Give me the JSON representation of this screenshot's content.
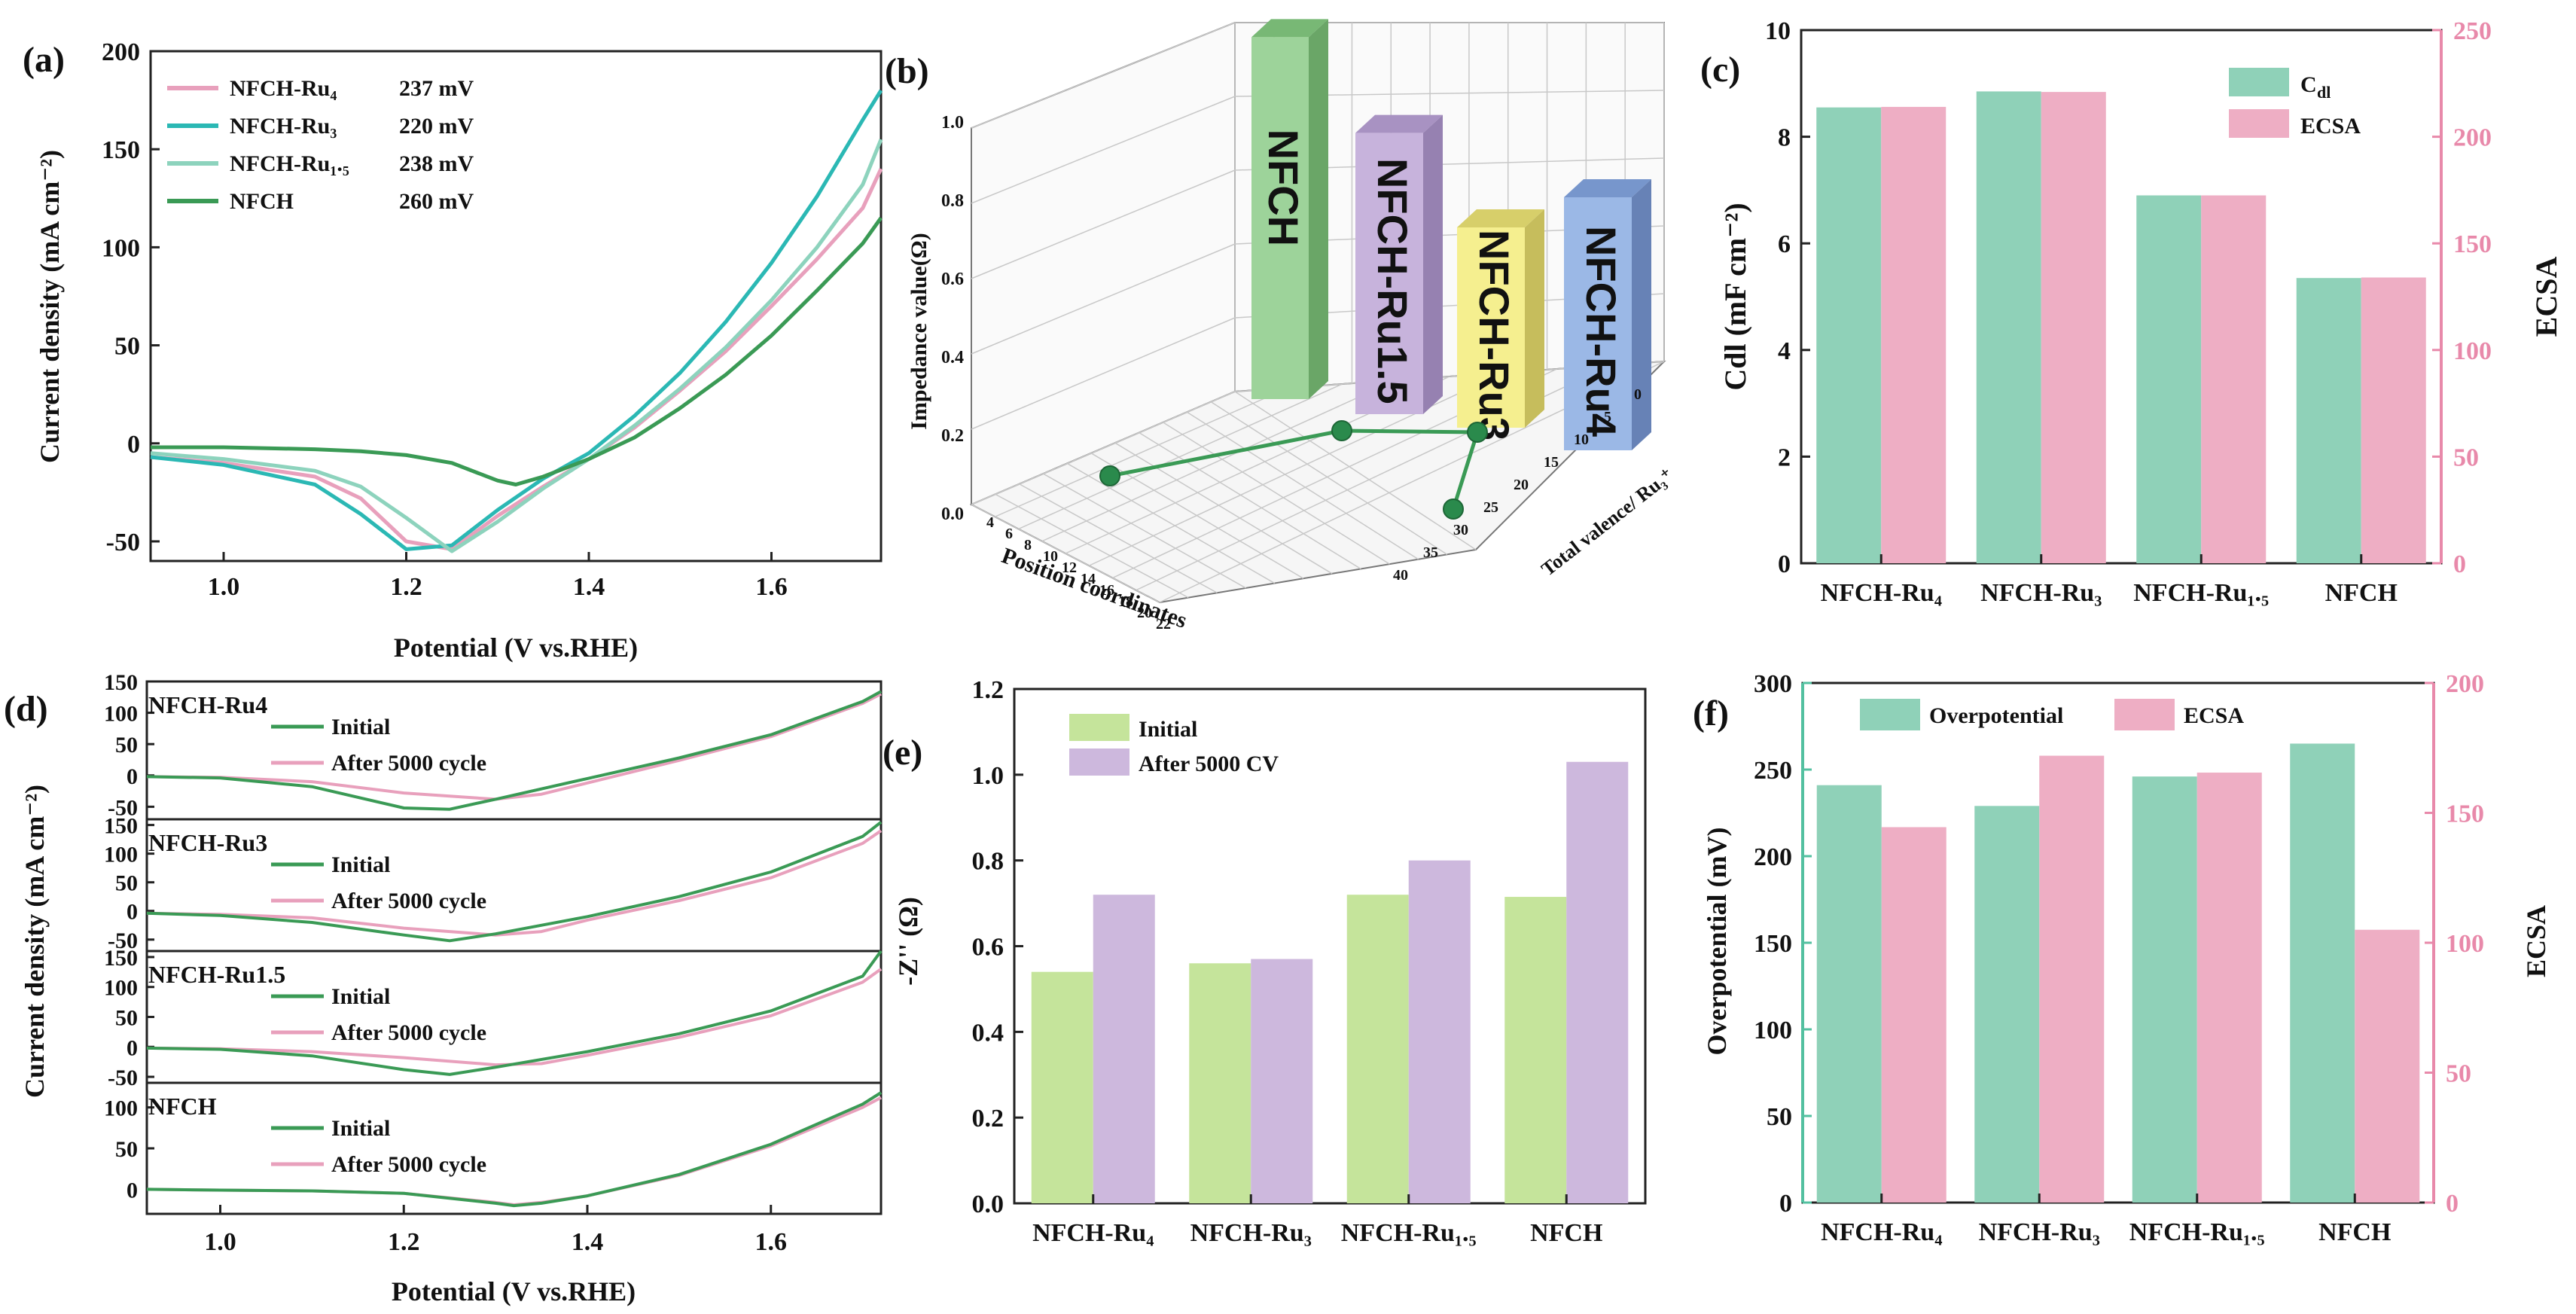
{
  "panels": {
    "a": "(a)",
    "b": "(b)",
    "c": "(c)",
    "d": "(d)",
    "e": "(e)",
    "f": "(f)"
  },
  "colors": {
    "ru4": "#e8a0bc",
    "ru3": "#2bb8b4",
    "ru15": "#8dd3bd",
    "nfch": "#3a9a55",
    "cdl": "#8fd1b8",
    "ecsa": "#eeaec4",
    "initial": "#c5e49b",
    "after": "#cdb8dd",
    "right_axis": "#e889aa",
    "left_axis_f": "#53c0a0"
  },
  "chart_data": [
    {
      "id": "a",
      "type": "line",
      "title": "",
      "xlabel": "Potential (V vs.RHE)",
      "ylabel": "Current density (mA cm⁻²)",
      "xlim": [
        0.92,
        1.72
      ],
      "ylim": [
        -60,
        200
      ],
      "xticks": [
        1.0,
        1.2,
        1.4,
        1.6
      ],
      "yticks": [
        -50,
        0,
        50,
        100,
        150,
        200
      ],
      "series": [
        {
          "key": "ru4",
          "name": "NFCH-Ru₄",
          "overpotential": "237 mV",
          "x": [
            0.92,
            1.0,
            1.1,
            1.15,
            1.2,
            1.25,
            1.3,
            1.35,
            1.4,
            1.45,
            1.5,
            1.55,
            1.6,
            1.65,
            1.7,
            1.72
          ],
          "y": [
            -7,
            -10,
            -17,
            -28,
            -50,
            -54,
            -37,
            -22,
            -8,
            8,
            27,
            47,
            70,
            94,
            120,
            140
          ]
        },
        {
          "key": "ru3",
          "name": "NFCH-Ru₃",
          "overpotential": "220 mV",
          "x": [
            0.92,
            1.0,
            1.1,
            1.15,
            1.2,
            1.25,
            1.3,
            1.35,
            1.4,
            1.45,
            1.5,
            1.55,
            1.6,
            1.65,
            1.7,
            1.72
          ],
          "y": [
            -7,
            -11,
            -21,
            -36,
            -54,
            -52,
            -34,
            -18,
            -5,
            14,
            36,
            62,
            92,
            126,
            165,
            180
          ]
        },
        {
          "key": "ru15",
          "name": "NFCH-Ru₁.₅",
          "overpotential": "238 mV",
          "x": [
            0.92,
            1.0,
            1.1,
            1.15,
            1.2,
            1.25,
            1.3,
            1.35,
            1.4,
            1.45,
            1.5,
            1.55,
            1.6,
            1.65,
            1.7,
            1.72
          ],
          "y": [
            -5,
            -8,
            -14,
            -22,
            -38,
            -55,
            -40,
            -23,
            -8,
            9,
            28,
            49,
            73,
            100,
            132,
            155
          ]
        },
        {
          "key": "nfch",
          "name": "NFCH",
          "overpotential": "260 mV",
          "x": [
            0.92,
            1.0,
            1.1,
            1.15,
            1.2,
            1.25,
            1.3,
            1.32,
            1.35,
            1.4,
            1.45,
            1.5,
            1.55,
            1.6,
            1.65,
            1.7,
            1.72
          ],
          "y": [
            -2,
            -2,
            -3,
            -4,
            -6,
            -10,
            -19,
            -21,
            -17,
            -8,
            3,
            18,
            35,
            55,
            78,
            102,
            115
          ]
        }
      ]
    },
    {
      "id": "b",
      "type": "bar",
      "title": "",
      "zlabel": "Impedance value(Ω)",
      "xlabel": "Position coordinates",
      "ylabel": "Total valence/ Ru₃⁺",
      "zticks": [
        "0.0",
        "0.2",
        "0.4",
        "0.6",
        "0.8",
        "1.0"
      ],
      "xticks": [
        "4",
        "6",
        "8",
        "10",
        "12",
        "14",
        "16",
        "18",
        "20",
        "22"
      ],
      "yticks": [
        "40",
        "35",
        "30",
        "25",
        "20",
        "15",
        "10",
        "5",
        "0"
      ],
      "bars": [
        {
          "label": "NFCH",
          "value": 1.03
        },
        {
          "label": "NFCH-Ru1.5",
          "value": 0.8
        },
        {
          "label": "NFCH-Ru3",
          "value": 0.57
        },
        {
          "label": "NFCH-Ru4",
          "value": 0.72
        }
      ]
    },
    {
      "id": "c",
      "type": "bar",
      "title": "",
      "ylabel": "Cdl (mF cm⁻²)",
      "ylabel_right": "ECSA",
      "ylim": [
        0,
        10
      ],
      "ylim_right": [
        0,
        250
      ],
      "yticks": [
        0,
        2,
        4,
        6,
        8,
        10
      ],
      "yticks_right": [
        0,
        50,
        100,
        150,
        200,
        250
      ],
      "categories": [
        "NFCH-Ru₄",
        "NFCH-Ru₃",
        "NFCH-Ru₁.₅",
        "NFCH"
      ],
      "series": [
        {
          "name": "Cdl",
          "values": [
            8.55,
            8.85,
            6.9,
            5.35
          ]
        },
        {
          "name": "ECSA",
          "values": [
            214,
            221,
            172.5,
            134
          ]
        }
      ]
    },
    {
      "id": "d",
      "type": "line",
      "title": "",
      "xlabel": "Potential (V vs.RHE)",
      "ylabel": "Current density (mA cm⁻²)",
      "xlim": [
        0.92,
        1.72
      ],
      "xticks": [
        1.0,
        1.2,
        1.4,
        1.6
      ],
      "legend": [
        "Initial",
        "After 5000 cycle"
      ],
      "subplots": [
        {
          "label": "NFCH-Ru4",
          "ylim": [
            -70,
            150
          ],
          "yticks": [
            -50,
            0,
            50,
            100,
            150
          ],
          "initial": {
            "x": [
              0.92,
              1.0,
              1.1,
              1.2,
              1.25,
              1.3,
              1.4,
              1.5,
              1.6,
              1.7,
              1.72
            ],
            "y": [
              -2,
              -4,
              -18,
              -52,
              -54,
              -38,
              -5,
              28,
              65,
              118,
              134
            ]
          },
          "after": {
            "x": [
              0.92,
              1.0,
              1.1,
              1.2,
              1.3,
              1.35,
              1.4,
              1.5,
              1.6,
              1.7,
              1.72
            ],
            "y": [
              -2,
              -3,
              -10,
              -28,
              -38,
              -30,
              -12,
              24,
              62,
              115,
              130
            ]
          }
        },
        {
          "label": "NFCH-Ru3",
          "ylim": [
            -70,
            160
          ],
          "yticks": [
            -50,
            0,
            50,
            100,
            150
          ],
          "initial": {
            "x": [
              0.92,
              1.0,
              1.1,
              1.2,
              1.25,
              1.3,
              1.4,
              1.5,
              1.6,
              1.7,
              1.72
            ],
            "y": [
              -4,
              -8,
              -20,
              -42,
              -52,
              -40,
              -10,
              25,
              68,
              130,
              155
            ]
          },
          "after": {
            "x": [
              0.92,
              1.0,
              1.1,
              1.2,
              1.3,
              1.35,
              1.4,
              1.5,
              1.6,
              1.7,
              1.72
            ],
            "y": [
              -4,
              -6,
              -12,
              -30,
              -42,
              -36,
              -16,
              18,
              58,
              118,
              140
            ]
          }
        },
        {
          "label": "NFCH-Ru1.5",
          "ylim": [
            -60,
            160
          ],
          "yticks": [
            -50,
            0,
            50,
            100,
            150
          ],
          "initial": {
            "x": [
              0.92,
              1.0,
              1.1,
              1.2,
              1.25,
              1.3,
              1.4,
              1.5,
              1.6,
              1.7,
              1.72
            ],
            "y": [
              -2,
              -4,
              -15,
              -38,
              -46,
              -34,
              -8,
              22,
              60,
              118,
              160
            ]
          },
          "after": {
            "x": [
              0.92,
              1.0,
              1.1,
              1.2,
              1.3,
              1.35,
              1.4,
              1.5,
              1.6,
              1.7,
              1.72
            ],
            "y": [
              -2,
              -3,
              -8,
              -18,
              -30,
              -28,
              -14,
              16,
              52,
              108,
              130
            ]
          }
        },
        {
          "label": "NFCH",
          "ylim": [
            -30,
            130
          ],
          "yticks": [
            0,
            50,
            100
          ],
          "initial": {
            "x": [
              0.92,
              1.0,
              1.1,
              1.2,
              1.3,
              1.32,
              1.35,
              1.4,
              1.5,
              1.6,
              1.7,
              1.72
            ],
            "y": [
              0,
              -1,
              -2,
              -5,
              -17,
              -20,
              -17,
              -8,
              18,
              55,
              104,
              118
            ]
          },
          "after": {
            "x": [
              0.92,
              1.0,
              1.1,
              1.2,
              1.3,
              1.32,
              1.35,
              1.4,
              1.5,
              1.6,
              1.7,
              1.72
            ],
            "y": [
              0,
              -1,
              -2,
              -5,
              -16,
              -19,
              -16,
              -8,
              17,
              53,
              100,
              112
            ]
          }
        }
      ]
    },
    {
      "id": "e",
      "type": "bar",
      "title": "",
      "ylabel": "-Z'' (Ω)",
      "ylim": [
        0,
        1.2
      ],
      "yticks": [
        "0.0",
        "0.2",
        "0.4",
        "0.6",
        "0.8",
        "1.0",
        "1.2"
      ],
      "categories": [
        "NFCH-Ru₄",
        "NFCH-Ru₃",
        "NFCH-Ru₁.₅",
        "NFCH"
      ],
      "series": [
        {
          "name": "Initial",
          "values": [
            0.54,
            0.56,
            0.72,
            0.715
          ]
        },
        {
          "name": "After 5000 CV",
          "values": [
            0.72,
            0.57,
            0.8,
            1.03
          ]
        }
      ]
    },
    {
      "id": "f",
      "type": "bar",
      "title": "",
      "ylabel": "Overpotential (mV)",
      "ylabel_right": "ECSA",
      "ylim": [
        0,
        300
      ],
      "ylim_right": [
        0,
        200
      ],
      "yticks": [
        0,
        50,
        100,
        150,
        200,
        250,
        300
      ],
      "yticks_right": [
        0,
        50,
        100,
        150,
        200
      ],
      "categories": [
        "NFCH-Ru₄",
        "NFCH-Ru₃",
        "NFCH-Ru₁.₅",
        "NFCH"
      ],
      "series": [
        {
          "name": "Overpotential",
          "values": [
            241,
            229,
            246,
            265
          ]
        },
        {
          "name": "ECSA",
          "values": [
            144.5,
            172,
            165.5,
            105
          ]
        }
      ]
    }
  ]
}
